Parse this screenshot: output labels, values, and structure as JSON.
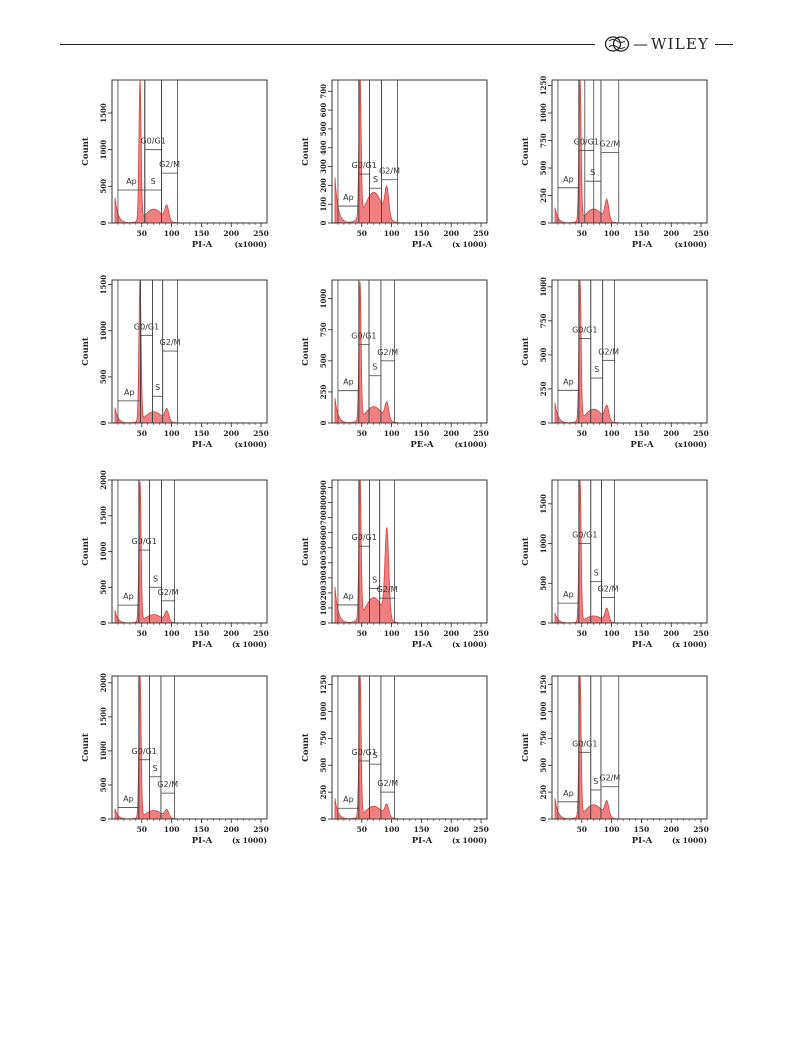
{
  "header": {
    "dash": "—",
    "publisher": "WILEY"
  },
  "xticks": [
    "50",
    "100",
    "150",
    "200",
    "250"
  ],
  "panels": [
    {
      "id": "a1",
      "ylabel": "Count",
      "xlabel": "PI-A",
      "xunit": "(x1000)",
      "yticks": [
        [
          0,
          "0"
        ],
        [
          500,
          "500"
        ],
        [
          1000,
          "1000"
        ],
        [
          1500,
          "1500"
        ]
      ],
      "ymax": 1950,
      "g1": 1900,
      "s": [
        0.1,
        0.1
      ],
      "g2": 0.1,
      "gates": {
        "ap": [
          10,
          55,
          450
        ],
        "g0g1": [
          55,
          83,
          1000
        ],
        "s": [
          55,
          83,
          450
        ],
        "g2m": [
          83,
          110,
          680
        ]
      }
    },
    {
      "id": "a2",
      "ylabel": "Count",
      "xlabel": "PI-A",
      "xunit": "(x 1000)",
      "yticks": [
        [
          0,
          "0"
        ],
        [
          100,
          "100"
        ],
        [
          200,
          "200"
        ],
        [
          300,
          "300"
        ],
        [
          400,
          "400"
        ],
        [
          500,
          "500"
        ],
        [
          600,
          "600"
        ],
        [
          700,
          "700"
        ]
      ],
      "ymax": 760,
      "g1": 740,
      "s": [
        0.18,
        0.22
      ],
      "g2": 0.2,
      "gates": {
        "ap": [
          10,
          45,
          90
        ],
        "g0g1": [
          45,
          63,
          260
        ],
        "s": [
          63,
          83,
          185
        ],
        "g2m": [
          83,
          110,
          230
        ]
      }
    },
    {
      "id": "a3",
      "ylabel": "Count",
      "xlabel": "PI-A",
      "xunit": "(x1000)",
      "yticks": [
        [
          0,
          "0"
        ],
        [
          250,
          "250"
        ],
        [
          500,
          "500"
        ],
        [
          750,
          "750"
        ],
        [
          1000,
          "1000"
        ],
        [
          1250,
          "1250"
        ]
      ],
      "ymax": 1300,
      "g1": 1280,
      "s": [
        0.06,
        0.1
      ],
      "g2": 0.14,
      "gates": {
        "ap": [
          10,
          45,
          320
        ],
        "g0g1": [
          45,
          70,
          660
        ],
        "s": [
          55,
          82,
          380
        ],
        "g2m": [
          82,
          112,
          640
        ]
      }
    },
    {
      "id": "b1",
      "ylabel": "Count",
      "xlabel": "PI-A",
      "xunit": "(x1000)",
      "yticks": [
        [
          0,
          "0"
        ],
        [
          500,
          "500"
        ],
        [
          1000,
          "1000"
        ],
        [
          1500,
          "1500"
        ]
      ],
      "ymax": 1550,
      "g1": 1520,
      "s": [
        0.06,
        0.08
      ],
      "g2": 0.08,
      "gates": {
        "ap": [
          10,
          48,
          240
        ],
        "g0g1": [
          48,
          68,
          950
        ],
        "s": [
          68,
          85,
          290
        ],
        "g2m": [
          85,
          110,
          780
        ]
      }
    },
    {
      "id": "b2",
      "ylabel": "Count",
      "xlabel": "PE-A",
      "xunit": "(x1000)",
      "yticks": [
        [
          0,
          "0"
        ],
        [
          250,
          "250"
        ],
        [
          500,
          "500"
        ],
        [
          750,
          "750"
        ],
        [
          1000,
          "1000"
        ]
      ],
      "ymax": 1150,
      "g1": 1100,
      "s": [
        0.1,
        0.12
      ],
      "g2": 0.12,
      "gates": {
        "ap": [
          10,
          45,
          260
        ],
        "g0g1": [
          45,
          62,
          630
        ],
        "s": [
          62,
          82,
          380
        ],
        "g2m": [
          82,
          105,
          500
        ]
      }
    },
    {
      "id": "b3",
      "ylabel": "Count",
      "xlabel": "PE-A",
      "xunit": "(x1000)",
      "yticks": [
        [
          0,
          "0"
        ],
        [
          250,
          "250"
        ],
        [
          500,
          "500"
        ],
        [
          750,
          "750"
        ],
        [
          1000,
          "1000"
        ]
      ],
      "ymax": 1050,
      "g1": 1020,
      "s": [
        0.08,
        0.1
      ],
      "g2": 0.1,
      "gates": {
        "ap": [
          10,
          45,
          240
        ],
        "g0g1": [
          45,
          65,
          620
        ],
        "s": [
          65,
          85,
          330
        ],
        "g2m": [
          85,
          105,
          460
        ]
      }
    },
    {
      "id": "c1",
      "ylabel": "Count",
      "xlabel": "PI-A",
      "xunit": "(x 1000)",
      "yticks": [
        [
          0,
          "0"
        ],
        [
          500,
          "500"
        ],
        [
          1000,
          "1000"
        ],
        [
          1500,
          "1500"
        ],
        [
          2000,
          "2000"
        ]
      ],
      "ymax": 2000,
      "g1": 1950,
      "s": [
        0.05,
        0.06
      ],
      "g2": 0.07,
      "gates": {
        "ap": [
          10,
          45,
          250
        ],
        "g0g1": [
          45,
          63,
          1020
        ],
        "s": [
          63,
          83,
          500
        ],
        "g2m": [
          83,
          105,
          310
        ]
      }
    },
    {
      "id": "c2",
      "ylabel": "Count",
      "xlabel": "PI-A",
      "xunit": "(x 1000)",
      "yticks": [
        [
          0,
          "0"
        ],
        [
          100,
          "100"
        ],
        [
          200,
          "200"
        ],
        [
          300,
          "300"
        ],
        [
          400,
          "400"
        ],
        [
          500,
          "500"
        ],
        [
          600,
          "600"
        ],
        [
          700,
          "700"
        ],
        [
          800,
          "800"
        ],
        [
          900,
          "900"
        ]
      ],
      "ymax": 950,
      "g1": 940,
      "s": [
        0.14,
        0.18
      ],
      "g2": 0.62,
      "gates": {
        "ap": [
          10,
          45,
          120
        ],
        "g0g1": [
          45,
          63,
          510
        ],
        "s": [
          63,
          80,
          230
        ],
        "g2m": [
          80,
          105,
          165
        ]
      }
    },
    {
      "id": "c3",
      "ylabel": "Count",
      "xlabel": "PI-A",
      "xunit": "(x 1000)",
      "yticks": [
        [
          0,
          "0"
        ],
        [
          500,
          "500"
        ],
        [
          1000,
          "1000"
        ],
        [
          1500,
          "1500"
        ]
      ],
      "ymax": 1800,
      "g1": 1780,
      "s": [
        0.04,
        0.05
      ],
      "g2": 0.09,
      "gates": {
        "ap": [
          10,
          45,
          250
        ],
        "g0g1": [
          45,
          65,
          1000
        ],
        "s": [
          65,
          83,
          520
        ],
        "g2m": [
          83,
          105,
          320
        ]
      }
    },
    {
      "id": "d1",
      "ylabel": "Count",
      "xlabel": "PI-A",
      "xunit": "(x 1000)",
      "yticks": [
        [
          0,
          "0"
        ],
        [
          500,
          "500"
        ],
        [
          1000,
          "1000"
        ],
        [
          1500,
          "1500"
        ],
        [
          2000,
          "2000"
        ]
      ],
      "ymax": 2100,
      "g1": 2080,
      "s": [
        0.04,
        0.06
      ],
      "g2": 0.05,
      "gates": {
        "ap": [
          10,
          45,
          170
        ],
        "g0g1": [
          45,
          63,
          870
        ],
        "s": [
          63,
          82,
          620
        ],
        "g2m": [
          82,
          105,
          380
        ]
      }
    },
    {
      "id": "d2",
      "ylabel": "Count",
      "xlabel": "PI-A",
      "xunit": "(x 1000)",
      "yticks": [
        [
          0,
          "0"
        ],
        [
          250,
          "250"
        ],
        [
          500,
          "500"
        ],
        [
          750,
          "750"
        ],
        [
          1000,
          "1000"
        ],
        [
          1250,
          "1250"
        ]
      ],
      "ymax": 1330,
      "g1": 1320,
      "s": [
        0.08,
        0.09
      ],
      "g2": 0.08,
      "gates": {
        "ap": [
          10,
          45,
          100
        ],
        "g0g1": [
          45,
          63,
          540
        ],
        "s": [
          63,
          82,
          510
        ],
        "g2m": [
          82,
          105,
          250
        ]
      }
    },
    {
      "id": "d3",
      "ylabel": "Count",
      "xlabel": "PI-A",
      "xunit": "(x 1000)",
      "yticks": [
        [
          0,
          "0"
        ],
        [
          250,
          "250"
        ],
        [
          500,
          "500"
        ],
        [
          750,
          "750"
        ],
        [
          1000,
          "1000"
        ],
        [
          1250,
          "1250"
        ]
      ],
      "ymax": 1330,
      "g1": 1320,
      "s": [
        0.08,
        0.1
      ],
      "g2": 0.1,
      "gates": {
        "ap": [
          10,
          45,
          160
        ],
        "g0g1": [
          45,
          65,
          620
        ],
        "s": [
          65,
          82,
          270
        ],
        "g2m": [
          82,
          112,
          300
        ]
      }
    }
  ],
  "gate_labels": {
    "ap": "Ap",
    "g0g1": "G0/G1",
    "s": "S",
    "g2m": "G2/M"
  },
  "colors": {
    "fill": "#f08080",
    "stroke": "#d94040",
    "axis": "#222222",
    "frame": "#333333"
  }
}
